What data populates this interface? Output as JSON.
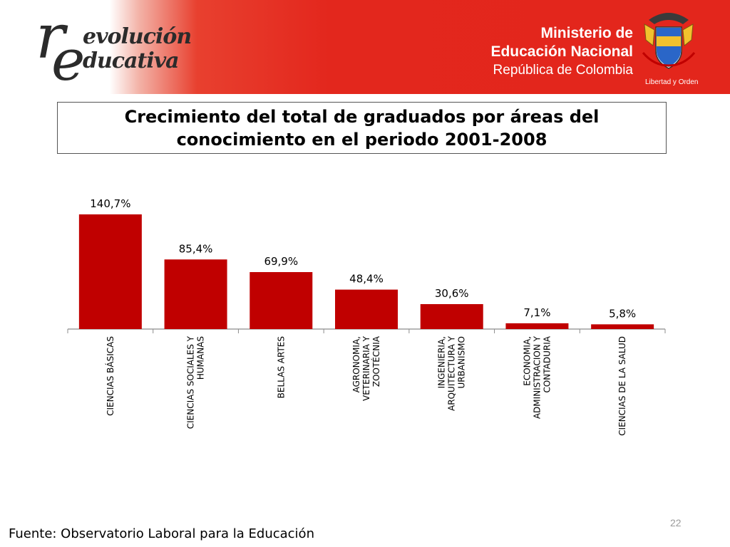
{
  "header": {
    "logo_text": "revolución educativa",
    "logo_line1": "evolución",
    "logo_line2": "ducativa",
    "ministry_line1": "Ministerio de",
    "ministry_line2": "Educación Nacional",
    "ministry_line3": "República de Colombia",
    "motto": "Libertad y Orden",
    "brand_color": "#e3261c"
  },
  "title": "Crecimiento del total de graduados por áreas del conocimiento en el periodo 2001-2008",
  "chart_data": {
    "type": "bar",
    "title": "Crecimiento del total de graduados por áreas del conocimiento en el periodo 2001-2008",
    "categories": [
      [
        "CIENCIAS BÁSICAS"
      ],
      [
        "CIENCIAS SOCIALES Y",
        "HUMANAS"
      ],
      [
        "BELLAS ARTES"
      ],
      [
        "AGRONOMIA,",
        "VETERINARIA Y",
        "ZOOTÉCNIA"
      ],
      [
        "INGENIERIA,",
        "ARQUITECTURA Y",
        "URBANISMO"
      ],
      [
        "ECONOMIA,",
        "ADMINISTRACION Y",
        "CONTADURIA"
      ],
      [
        "CIENCIAS DE LA SALUD"
      ]
    ],
    "values": [
      140.7,
      85.4,
      69.9,
      48.4,
      30.6,
      7.1,
      5.8
    ],
    "value_labels": [
      "140,7%",
      "85,4%",
      "69,9%",
      "48,4%",
      "30,6%",
      "7,1%",
      "5,8%"
    ],
    "ylim": [
      0,
      140.7
    ],
    "bar_color": "#c00000",
    "grid": false,
    "xlabel": "",
    "ylabel": ""
  },
  "footer": {
    "source": "Fuente: Observatorio Laboral para la Educación",
    "page_number": "22"
  }
}
